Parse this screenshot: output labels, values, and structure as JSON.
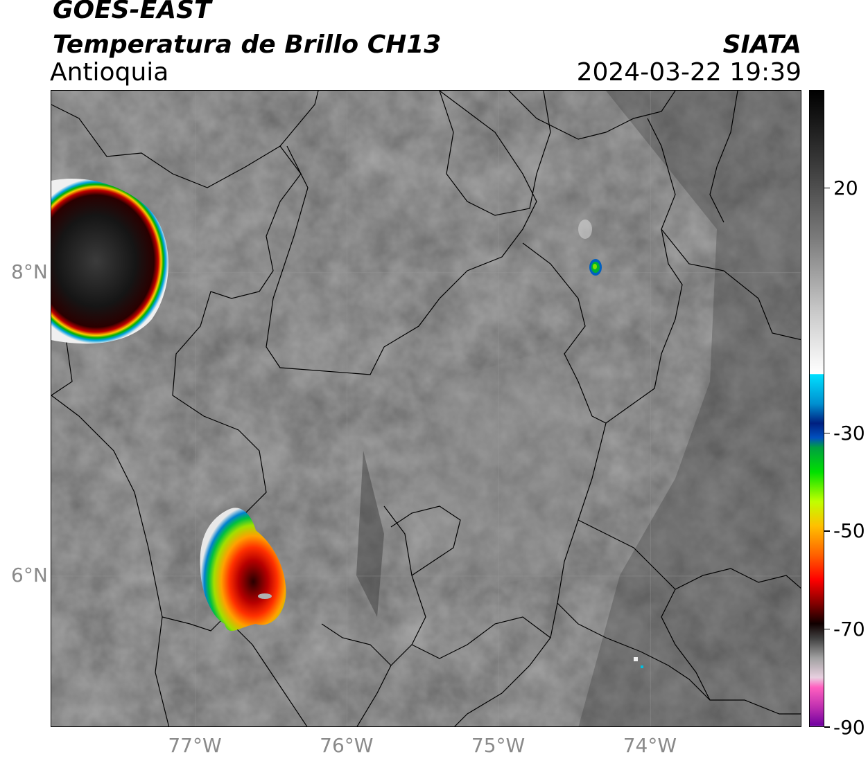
{
  "header": {
    "satellite": "GOES-EAST",
    "product": "Temperatura de Brillo CH13",
    "region": "Antioquia",
    "agency": "SIATA",
    "datetime": "2024-03-22 19:39"
  },
  "map": {
    "lon_range": [
      -77.95,
      -73.0
    ],
    "lat_range": [
      5.0,
      9.2
    ],
    "x_ticks": [
      {
        "value": -77,
        "label": "77°W"
      },
      {
        "value": -76,
        "label": "76°W"
      },
      {
        "value": -75,
        "label": "75°W"
      },
      {
        "value": -74,
        "label": "74°W"
      }
    ],
    "y_ticks": [
      {
        "value": 8,
        "label": "8°N"
      },
      {
        "value": 6,
        "label": "6°N"
      }
    ],
    "gridlines": true,
    "colors": {
      "background_gray": "#5a5a5a",
      "boundary": "#000000",
      "cold_core": "#1a1a1a"
    }
  },
  "colorbar": {
    "range": [
      -90,
      40
    ],
    "ticks": [
      {
        "value": 20,
        "label": "20"
      },
      {
        "value": -30,
        "label": "-30"
      },
      {
        "value": -50,
        "label": "-50"
      },
      {
        "value": -70,
        "label": "-70"
      },
      {
        "value": -90,
        "label": "-90"
      }
    ]
  }
}
